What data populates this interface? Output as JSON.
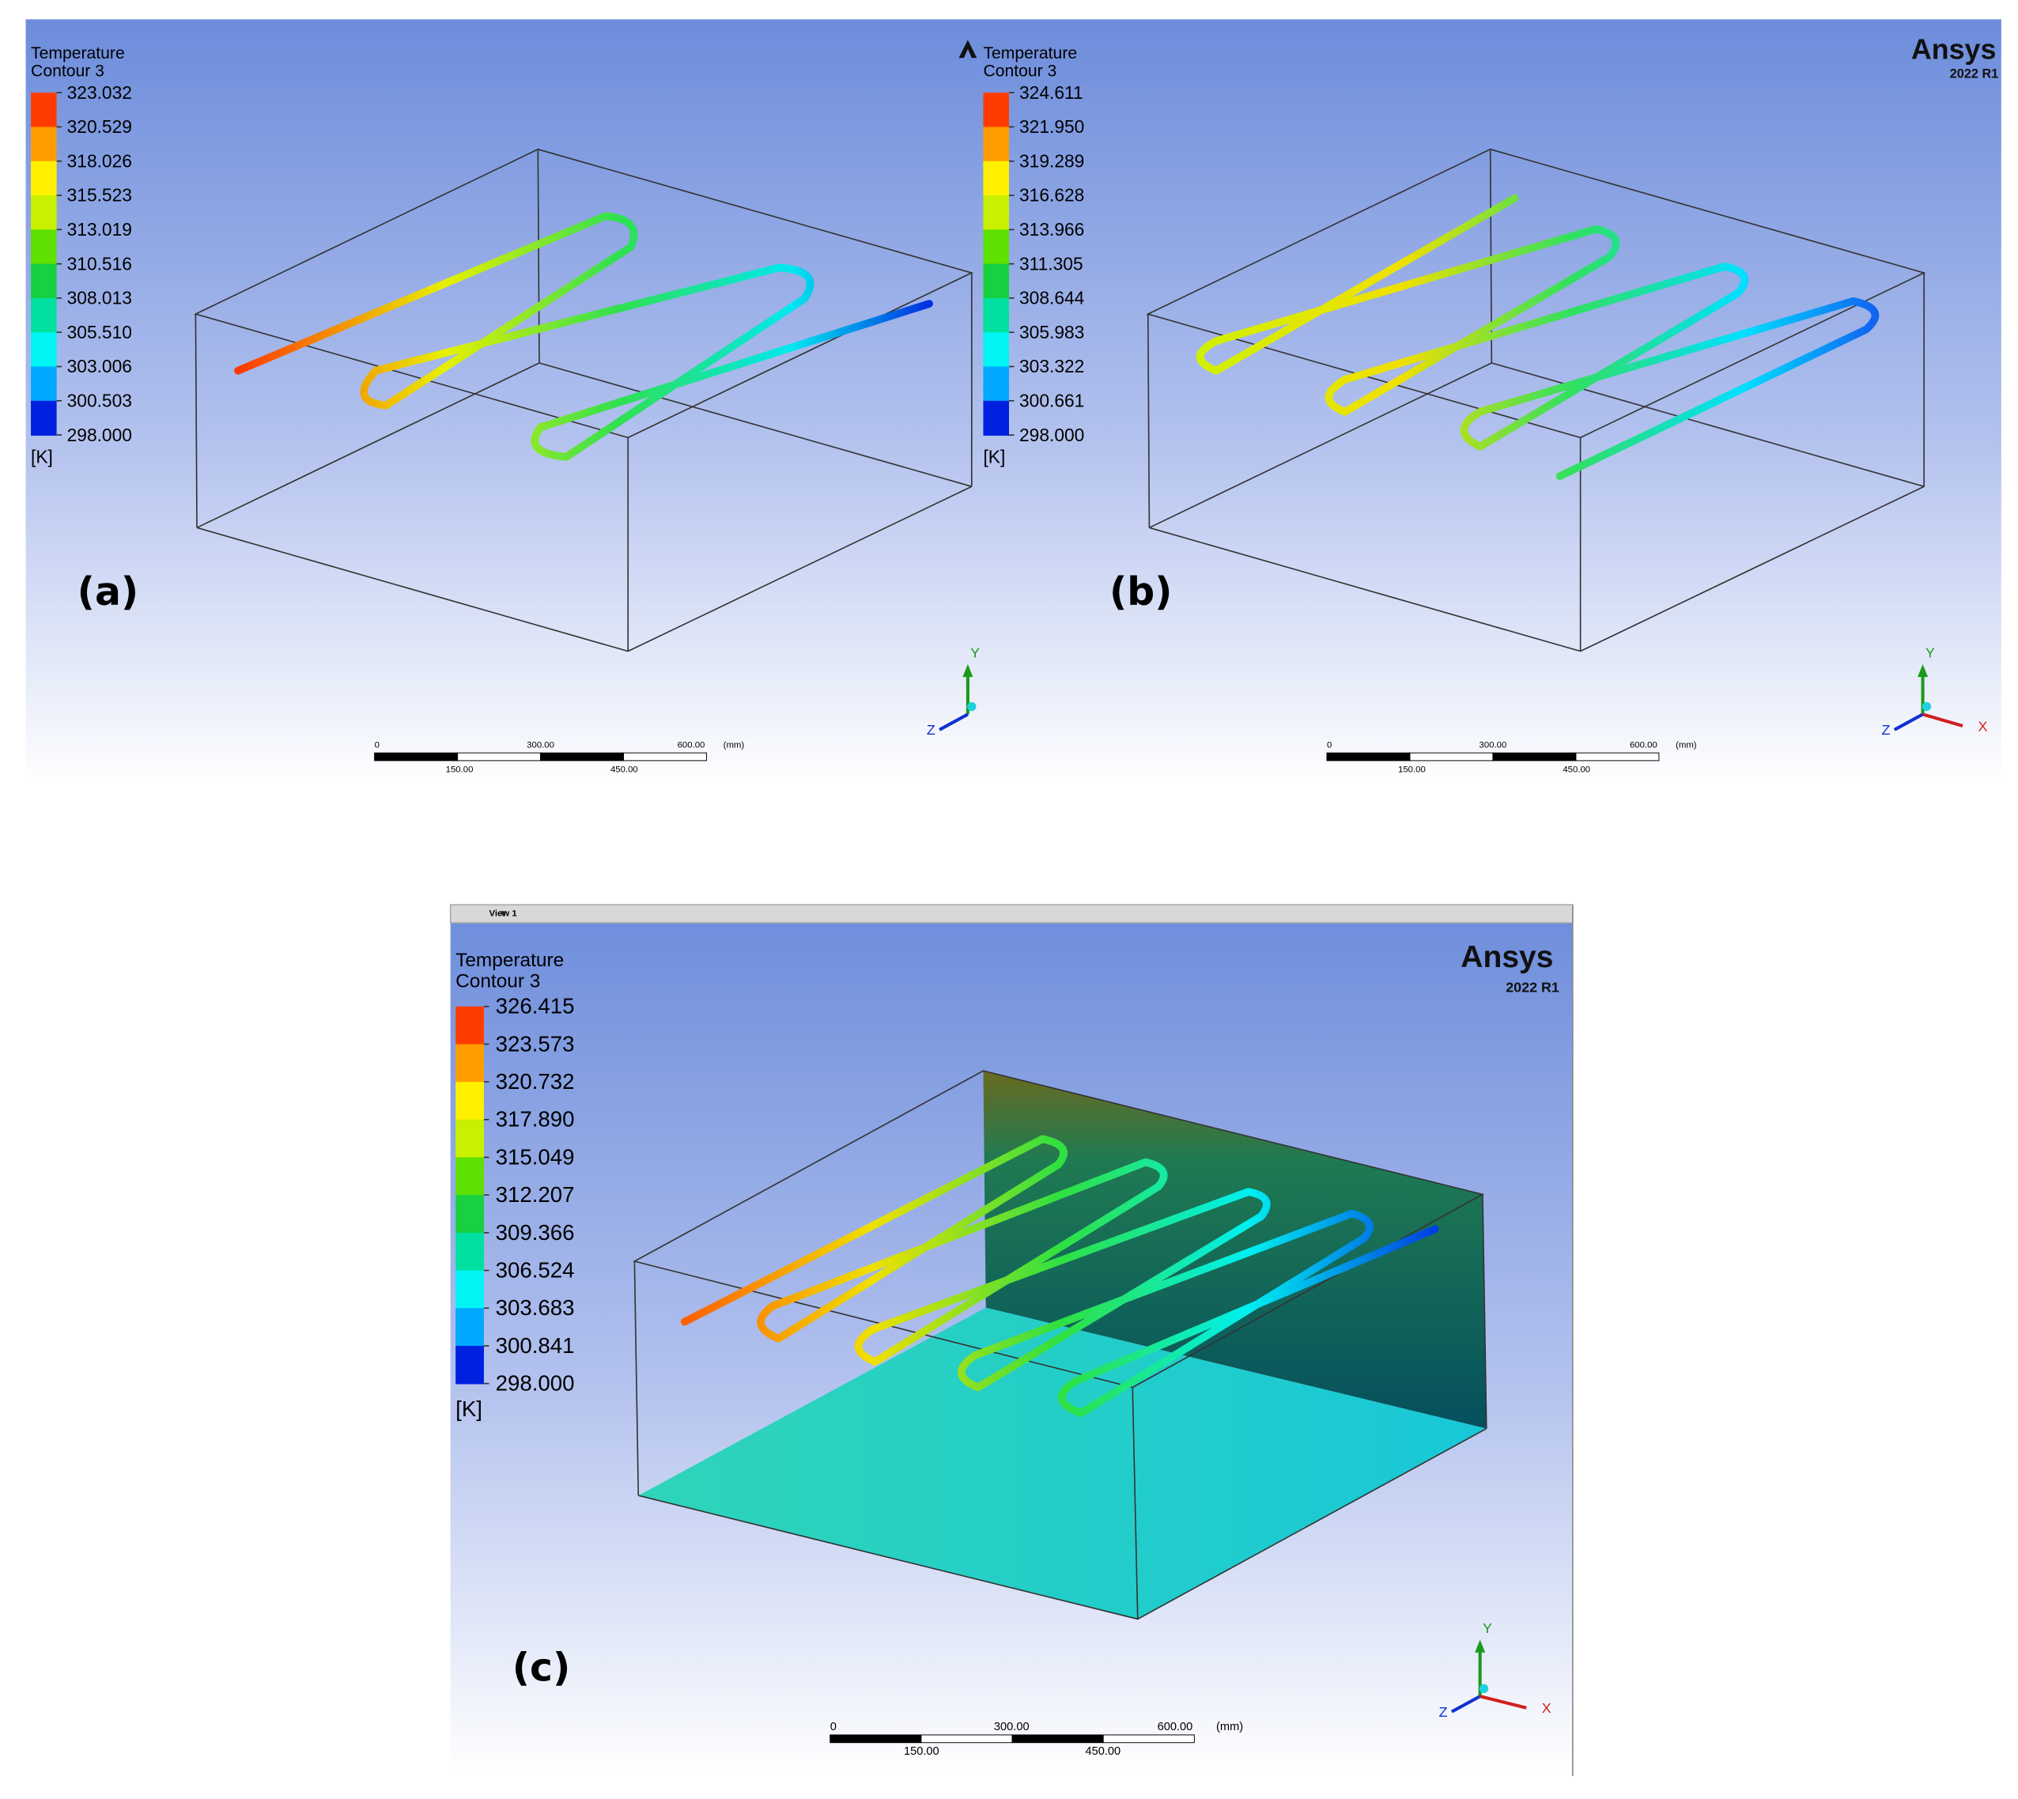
{
  "panels": [
    {
      "label": "(a)",
      "legend": {
        "title": [
          "Temperature",
          "Contour 3"
        ],
        "values": [
          "323.032",
          "320.529",
          "318.026",
          "315.523",
          "313.019",
          "310.516",
          "308.013",
          "305.510",
          "303.006",
          "300.503",
          "298.000"
        ],
        "unit": "[K]"
      },
      "scale": {
        "top": [
          "0",
          "300.00",
          "600.00",
          "(mm)"
        ],
        "bottom": [
          "150.00",
          "450.00"
        ]
      },
      "axes": {
        "y": "Y",
        "z": "Z"
      }
    },
    {
      "label": "(b)",
      "logo": {
        "name": "Ansys",
        "version": "2022 R1"
      },
      "legend": {
        "title": [
          "Temperature",
          "Contour 3"
        ],
        "values": [
          "324.611",
          "321.950",
          "319.289",
          "316.628",
          "313.966",
          "311.305",
          "308.644",
          "305.983",
          "303.322",
          "300.661",
          "298.000"
        ],
        "unit": "[K]"
      },
      "scale": {
        "top": [
          "0",
          "300.00",
          "600.00",
          "(mm)"
        ],
        "bottom": [
          "150.00",
          "450.00"
        ]
      },
      "axes": {
        "y": "Y",
        "z": "Z",
        "x": "X"
      }
    },
    {
      "label": "(c)",
      "view": "View 1",
      "logo": {
        "name": "Ansys",
        "version": "2022 R1"
      },
      "legend": {
        "title": [
          "Temperature",
          "Contour 3"
        ],
        "values": [
          "326.415",
          "323.573",
          "320.732",
          "317.890",
          "315.049",
          "312.207",
          "309.366",
          "306.524",
          "303.683",
          "300.841",
          "298.000"
        ],
        "unit": "[K]"
      },
      "scale": {
        "top": [
          "0",
          "300.00",
          "600.00",
          "(mm)"
        ],
        "bottom": [
          "150.00",
          "450.00"
        ]
      },
      "axes": {
        "y": "Y",
        "z": "Z",
        "x": "X"
      }
    }
  ]
}
